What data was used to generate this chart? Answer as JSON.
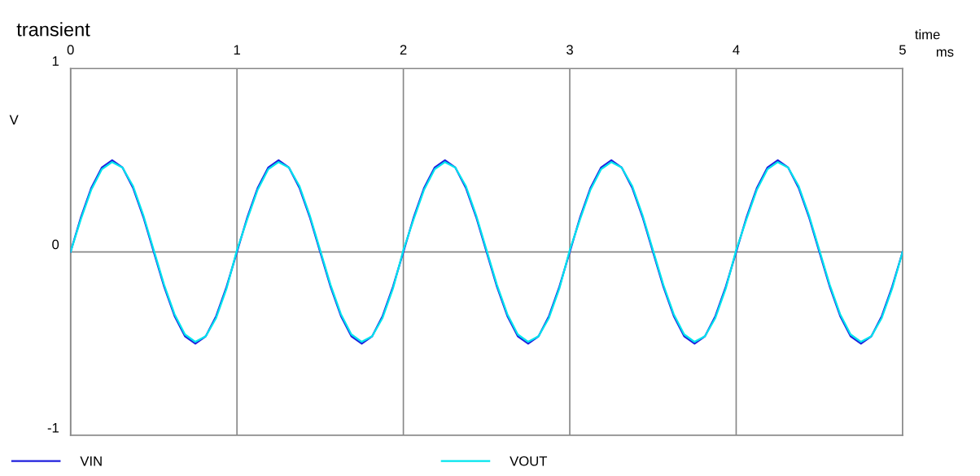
{
  "chart_data": {
    "type": "line",
    "title": "transient",
    "xlabel": "time",
    "ylabel": "V",
    "annotations": [
      "ms"
    ],
    "x": [
      0,
      0.0625,
      0.125,
      0.1875,
      0.25,
      0.3125,
      0.375,
      0.4375,
      0.5,
      0.5625,
      0.625,
      0.6875,
      0.75,
      0.8125,
      0.875,
      0.9375,
      1,
      1.0625,
      1.125,
      1.1875,
      1.25,
      1.3125,
      1.375,
      1.4375,
      1.5,
      1.5625,
      1.625,
      1.6875,
      1.75,
      1.8125,
      1.875,
      1.9375,
      2,
      2.0625,
      2.125,
      2.1875,
      2.25,
      2.3125,
      2.375,
      2.4375,
      2.5,
      2.5625,
      2.625,
      2.6875,
      2.75,
      2.8125,
      2.875,
      2.9375,
      3,
      3.0625,
      3.125,
      3.1875,
      3.25,
      3.3125,
      3.375,
      3.4375,
      3.5,
      3.5625,
      3.625,
      3.6875,
      3.75,
      3.8125,
      3.875,
      3.9375,
      4,
      4.0625,
      4.125,
      4.1875,
      4.25,
      4.3125,
      4.375,
      4.4375,
      4.5,
      4.5625,
      4.625,
      4.6875,
      4.75,
      4.8125,
      4.875,
      4.9375,
      5
    ],
    "series": [
      {
        "name": "VIN",
        "color": "#1f1fdd",
        "values": [
          0,
          0.19,
          0.35,
          0.46,
          0.5,
          0.46,
          0.35,
          0.19,
          0,
          -0.19,
          -0.35,
          -0.46,
          -0.5,
          -0.46,
          -0.35,
          -0.19,
          0,
          0.19,
          0.35,
          0.46,
          0.5,
          0.46,
          0.35,
          0.19,
          0,
          -0.19,
          -0.35,
          -0.46,
          -0.5,
          -0.46,
          -0.35,
          -0.19,
          0,
          0.19,
          0.35,
          0.46,
          0.5,
          0.46,
          0.35,
          0.19,
          0,
          -0.19,
          -0.35,
          -0.46,
          -0.5,
          -0.46,
          -0.35,
          -0.19,
          0,
          0.19,
          0.35,
          0.46,
          0.5,
          0.46,
          0.35,
          0.19,
          0,
          -0.19,
          -0.35,
          -0.46,
          -0.5,
          -0.46,
          -0.35,
          -0.19,
          0,
          0.19,
          0.35,
          0.46,
          0.5,
          0.46,
          0.35,
          0.19,
          0,
          -0.19,
          -0.35,
          -0.46,
          -0.5,
          -0.46,
          -0.35,
          -0.19,
          0
        ]
      },
      {
        "name": "VOUT",
        "color": "#00e5ee",
        "values": [
          0,
          0.18,
          0.34,
          0.45,
          0.49,
          0.46,
          0.36,
          0.2,
          0.01,
          -0.18,
          -0.34,
          -0.45,
          -0.49,
          -0.46,
          -0.36,
          -0.2,
          0.01,
          0.18,
          0.34,
          0.45,
          0.49,
          0.46,
          0.36,
          0.2,
          0.01,
          -0.18,
          -0.34,
          -0.45,
          -0.49,
          -0.46,
          -0.36,
          -0.2,
          0.01,
          0.18,
          0.34,
          0.45,
          0.49,
          0.46,
          0.36,
          0.2,
          0.01,
          -0.18,
          -0.34,
          -0.45,
          -0.49,
          -0.46,
          -0.36,
          -0.2,
          0.01,
          0.18,
          0.34,
          0.45,
          0.49,
          0.46,
          0.36,
          0.2,
          0.01,
          -0.18,
          -0.34,
          -0.45,
          -0.49,
          -0.46,
          -0.36,
          -0.2,
          0.01,
          0.18,
          0.34,
          0.45,
          0.49,
          0.46,
          0.36,
          0.2,
          0.01,
          -0.18,
          -0.34,
          -0.45,
          -0.49,
          -0.46,
          -0.36,
          -0.2,
          0
        ]
      }
    ],
    "xlim": [
      0,
      5
    ],
    "xticks": [
      0,
      1,
      2,
      3,
      4,
      5
    ],
    "ylim": [
      -1,
      1
    ],
    "yticks": [
      -1,
      0,
      1
    ],
    "grid": true,
    "legend": "bottom",
    "line_style": "solid"
  }
}
